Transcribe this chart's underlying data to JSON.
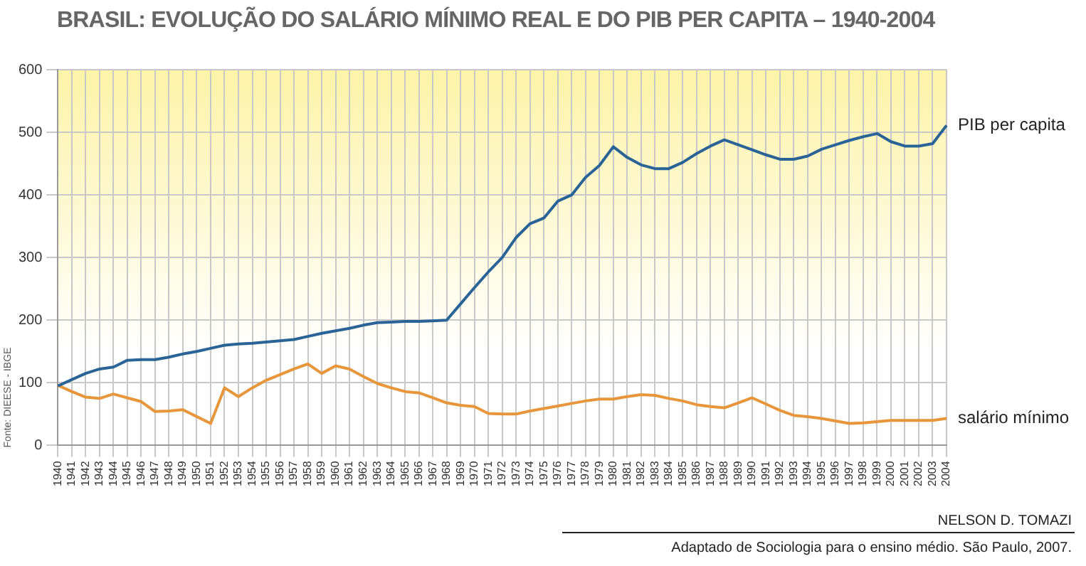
{
  "chart_data": {
    "type": "line",
    "title": "BRASIL: EVOLUÇÃO DO SALÁRIO MÍNIMO REAL E DO PIB PER CAPITA – 1940-2004",
    "categories": [
      "1940",
      "1941",
      "1942",
      "1943",
      "1944",
      "1945",
      "1946",
      "1947",
      "1948",
      "1949",
      "1950",
      "1951",
      "1952",
      "1953",
      "1954",
      "1955",
      "1956",
      "1957",
      "1958",
      "1959",
      "1960",
      "1961",
      "1962",
      "1963",
      "1964",
      "1965",
      "1966",
      "1967",
      "1968",
      "1969",
      "1970",
      "1971",
      "1972",
      "1973",
      "1974",
      "1975",
      "1976",
      "1977",
      "1978",
      "1979",
      "1980",
      "1981",
      "1982",
      "1983",
      "1984",
      "1985",
      "1986",
      "1987",
      "1988",
      "1989",
      "1990",
      "1991",
      "1992",
      "1993",
      "1994",
      "1995",
      "1996",
      "1997",
      "1998",
      "1999",
      "2000",
      "2001",
      "2002",
      "2003",
      "2004"
    ],
    "series": [
      {
        "name": "PIB per capita",
        "color": "#2a6496",
        "values": [
          95,
          105,
          115,
          122,
          125,
          136,
          137,
          137,
          141,
          146,
          150,
          155,
          160,
          162,
          163,
          165,
          167,
          169,
          174,
          179,
          183,
          187,
          192,
          196,
          197,
          198,
          198,
          199,
          200,
          226,
          252,
          277,
          300,
          332,
          354,
          363,
          390,
          400,
          428,
          447,
          477,
          460,
          448,
          442,
          442,
          452,
          466,
          478,
          488,
          480,
          472,
          464,
          457,
          457,
          462,
          473,
          480,
          487,
          493,
          498,
          485,
          478,
          478,
          482,
          511
        ]
      },
      {
        "name": "salário mínimo",
        "color": "#e8963c",
        "values": [
          96,
          86,
          77,
          75,
          82,
          76,
          70,
          54,
          55,
          57,
          46,
          35,
          92,
          78,
          92,
          104,
          113,
          122,
          130,
          115,
          127,
          122,
          110,
          99,
          92,
          86,
          84,
          76,
          68,
          64,
          62,
          51,
          50,
          50,
          55,
          59,
          63,
          67,
          71,
          74,
          74,
          78,
          81,
          80,
          75,
          71,
          65,
          62,
          60,
          68,
          76,
          66,
          56,
          48,
          46,
          43,
          39,
          35,
          36,
          38,
          40,
          40,
          40,
          40,
          43
        ]
      }
    ],
    "ylim": [
      0,
      600
    ],
    "yticks": [
      0,
      100,
      200,
      300,
      400,
      500,
      600
    ],
    "grid": true,
    "legend": false,
    "marker": "none",
    "line_style": "solid",
    "annotations": [
      "Fonte: DIEESE - IBGE",
      "NELSON D. TOMAZI",
      "Adaptado de Sociologia para o ensino médio. São Paulo, 2007."
    ]
  }
}
